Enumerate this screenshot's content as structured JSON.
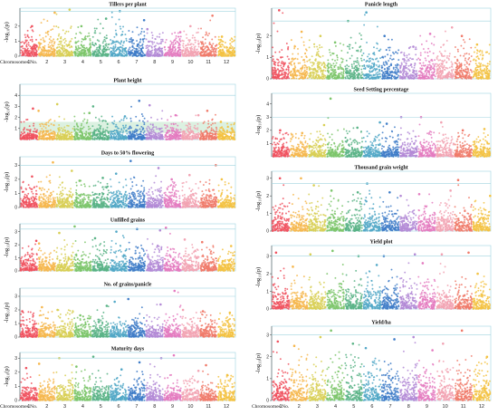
{
  "chart_data": [
    {
      "type": "scatter",
      "title": "Tillers per plant",
      "ylabel": "-log₁₀(p)",
      "yticks": [
        0,
        1,
        2
      ],
      "ylim": [
        0,
        3.2
      ],
      "threshold": 3.0,
      "hasBand": false,
      "peaks": [
        [
          1,
          2.0
        ],
        [
          2,
          2.9
        ],
        [
          3,
          3.1
        ],
        [
          4,
          2.0
        ],
        [
          5,
          2.5
        ],
        [
          6,
          3.0
        ],
        [
          7,
          2.4
        ],
        [
          8,
          1.8
        ],
        [
          9,
          1.6
        ],
        [
          10,
          2.0
        ],
        [
          11,
          2.7
        ],
        [
          12,
          1.3
        ]
      ]
    },
    {
      "type": "scatter",
      "title": "Panicle length",
      "ylabel": "-log₁₀(p)",
      "yticks": [
        0,
        1,
        2
      ],
      "ylim": [
        0,
        3.3
      ],
      "threshold": 2.7,
      "hasBand": false,
      "peaks": [
        [
          1,
          3.2
        ],
        [
          2,
          2.2
        ],
        [
          3,
          2.0
        ],
        [
          4,
          1.7
        ],
        [
          5,
          2.7
        ],
        [
          6,
          3.1
        ],
        [
          7,
          2.0
        ],
        [
          8,
          1.5
        ],
        [
          9,
          2.1
        ],
        [
          10,
          2.4
        ],
        [
          11,
          2.0
        ],
        [
          12,
          1.6
        ]
      ]
    },
    {
      "type": "scatter",
      "title": "Plant height",
      "ylabel": "-log₁₀(p)",
      "yticks": [
        1,
        2,
        3,
        4
      ],
      "ylim": [
        0,
        5
      ],
      "threshold": 4.0,
      "hasBand": true,
      "peaks": [
        [
          1,
          2.8
        ],
        [
          2,
          2.6
        ],
        [
          3,
          3.2
        ],
        [
          4,
          2.4
        ],
        [
          5,
          3.0
        ],
        [
          6,
          2.1
        ],
        [
          7,
          3.5
        ],
        [
          8,
          3.1
        ],
        [
          9,
          2.2
        ],
        [
          10,
          2.2
        ],
        [
          11,
          2.6
        ],
        [
          12,
          1.6
        ]
      ]
    },
    {
      "type": "scatter",
      "title": "Seed Setting percentage",
      "ylabel": "-log₁₀(p)",
      "yticks": [
        1,
        2,
        3,
        4
      ],
      "ylim": [
        0,
        4.8
      ],
      "threshold": 3.0,
      "hasBand": false,
      "peaks": [
        [
          1,
          2.0
        ],
        [
          2,
          1.8
        ],
        [
          3,
          2.4
        ],
        [
          4,
          4.4
        ],
        [
          5,
          2.2
        ],
        [
          6,
          2.6
        ],
        [
          7,
          2.5
        ],
        [
          8,
          3.0
        ],
        [
          9,
          3.0
        ],
        [
          10,
          2.6
        ],
        [
          11,
          2.0
        ],
        [
          12,
          2.1
        ]
      ]
    },
    {
      "type": "scatter",
      "title": "Days to 50% flowering",
      "ylabel": "-log₁₀(p)",
      "yticks": [
        0,
        1,
        2,
        3
      ],
      "ylim": [
        0,
        3.6
      ],
      "threshold": 3.0,
      "hasBand": false,
      "peaks": [
        [
          1,
          2.2
        ],
        [
          2,
          3.2
        ],
        [
          3,
          2.6
        ],
        [
          4,
          1.9
        ],
        [
          5,
          2.1
        ],
        [
          6,
          2.4
        ],
        [
          7,
          3.3
        ],
        [
          8,
          2.8
        ],
        [
          9,
          2.0
        ],
        [
          10,
          2.3
        ],
        [
          11,
          3.0
        ],
        [
          12,
          2.0
        ]
      ]
    },
    {
      "type": "scatter",
      "title": "Thousand grain weight",
      "ylabel": "-log₁₀(p)",
      "yticks": [
        0,
        1,
        2,
        3
      ],
      "ylim": [
        0,
        3.4
      ],
      "threshold": 2.7,
      "hasBand": false,
      "peaks": [
        [
          1,
          3.0
        ],
        [
          2,
          3.0
        ],
        [
          3,
          2.6
        ],
        [
          4,
          2.3
        ],
        [
          5,
          2.2
        ],
        [
          6,
          2.7
        ],
        [
          7,
          2.2
        ],
        [
          8,
          2.0
        ],
        [
          9,
          2.1
        ],
        [
          10,
          2.3
        ],
        [
          11,
          2.9
        ],
        [
          12,
          2.0
        ]
      ]
    },
    {
      "type": "scatter",
      "title": "Unfilled grains",
      "ylabel": "-log₁₀(p)",
      "yticks": [
        0,
        1,
        2,
        3
      ],
      "ylim": [
        0,
        3.6
      ],
      "threshold": 3.2,
      "hasBand": false,
      "peaks": [
        [
          1,
          2.3
        ],
        [
          2,
          2.1
        ],
        [
          3,
          2.9
        ],
        [
          4,
          3.4
        ],
        [
          5,
          2.5
        ],
        [
          6,
          3.0
        ],
        [
          7,
          3.2
        ],
        [
          8,
          3.1
        ],
        [
          9,
          3.3
        ],
        [
          10,
          2.4
        ],
        [
          11,
          2.2
        ],
        [
          12,
          1.9
        ]
      ]
    },
    {
      "type": "scatter",
      "title": "Yield plot",
      "ylabel": "-log₁₀(p)",
      "yticks": [
        0,
        1,
        2,
        3
      ],
      "ylim": [
        0,
        3.6
      ],
      "threshold": 3.0,
      "hasBand": false,
      "peaks": [
        [
          1,
          3.2
        ],
        [
          2,
          2.4
        ],
        [
          3,
          3.1
        ],
        [
          4,
          3.3
        ],
        [
          5,
          3.0
        ],
        [
          6,
          2.5
        ],
        [
          7,
          3.0
        ],
        [
          8,
          3.1
        ],
        [
          9,
          2.6
        ],
        [
          10,
          3.1
        ],
        [
          11,
          3.2
        ],
        [
          12,
          2.0
        ]
      ]
    },
    {
      "type": "scatter",
      "title": "No. of grains/panicle",
      "ylabel": "-log₁₀(p)",
      "yticks": [
        0,
        1,
        2,
        3
      ],
      "ylim": [
        0,
        3.6
      ],
      "threshold": 3.0,
      "hasBand": false,
      "peaks": [
        [
          1,
          1.9
        ],
        [
          2,
          2.2
        ],
        [
          3,
          2.0
        ],
        [
          4,
          1.6
        ],
        [
          5,
          2.3
        ],
        [
          6,
          2.6
        ],
        [
          7,
          2.8
        ],
        [
          8,
          2.4
        ],
        [
          9,
          3.4
        ],
        [
          10,
          2.0
        ],
        [
          11,
          1.9
        ],
        [
          12,
          1.8
        ]
      ]
    },
    {
      "type": "scatter",
      "title": "Yield/ha",
      "ylabel": "-log₁₀(p)",
      "yticks": [
        0,
        1,
        2,
        3
      ],
      "ylim": [
        0,
        3.4
      ],
      "threshold": 3.0,
      "hasBand": false,
      "peaks": [
        [
          1,
          2.7
        ],
        [
          2,
          2.5
        ],
        [
          3,
          2.9
        ],
        [
          4,
          3.2
        ],
        [
          5,
          2.6
        ],
        [
          6,
          2.4
        ],
        [
          7,
          2.8
        ],
        [
          8,
          2.9
        ],
        [
          9,
          2.3
        ],
        [
          10,
          2.6
        ],
        [
          11,
          3.2
        ],
        [
          12,
          2.0
        ]
      ]
    },
    {
      "type": "scatter",
      "title": "Maturity days",
      "ylabel": "-log₁₀(p)",
      "yticks": [
        0,
        1,
        2,
        3
      ],
      "ylim": [
        0,
        3.4
      ],
      "threshold": 3.0,
      "hasBand": false,
      "peaks": [
        [
          1,
          2.3
        ],
        [
          2,
          2.6
        ],
        [
          3,
          3.0
        ],
        [
          4,
          2.4
        ],
        [
          5,
          3.1
        ],
        [
          6,
          2.2
        ],
        [
          7,
          2.7
        ],
        [
          8,
          3.0
        ],
        [
          9,
          3.2
        ],
        [
          10,
          2.1
        ],
        [
          11,
          2.5
        ],
        [
          12,
          1.8
        ]
      ]
    }
  ],
  "x_axis": {
    "title": "Chromosomes No.",
    "labels": [
      "1",
      "2",
      "3",
      "4",
      "5",
      "6",
      "7",
      "8",
      "9",
      "10",
      "11",
      "12"
    ]
  },
  "chromosome_colors": [
    "#f0525f",
    "#f6b74d",
    "#d8cf55",
    "#7cc56b",
    "#59b386",
    "#52a8c7",
    "#3f7dc8",
    "#b38ad6",
    "#e47bc0",
    "#f2a3b3",
    "#f07a6a",
    "#f3c242"
  ]
}
